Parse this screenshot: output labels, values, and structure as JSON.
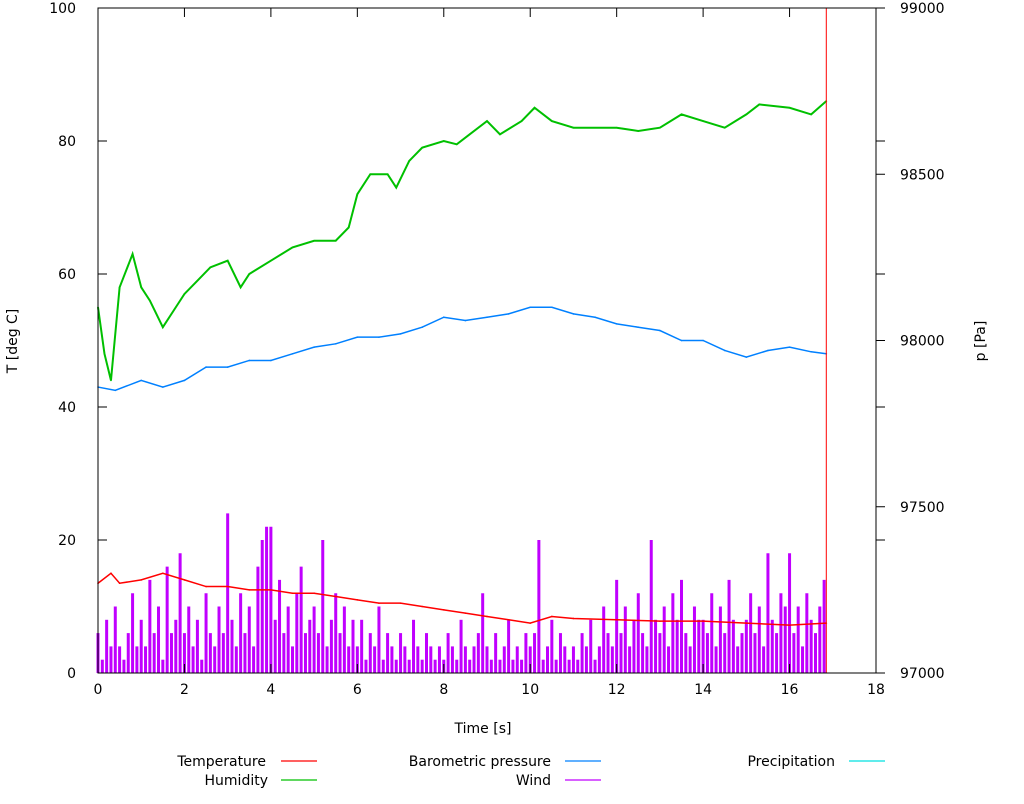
{
  "chart_data": {
    "type": "line",
    "xlabel": "Time [s]",
    "ylabel": "T [deg C]",
    "y2label": "p [Pa]",
    "xlim": [
      0,
      18
    ],
    "ylim": [
      0,
      100
    ],
    "y2lim": [
      97000,
      99000
    ],
    "xticks": [
      "0",
      "2",
      "4",
      "6",
      "8",
      "10",
      "12",
      "14",
      "16",
      "18"
    ],
    "yticks": [
      "0",
      "20",
      "40",
      "60",
      "80",
      "100"
    ],
    "y2ticks": [
      "97000",
      "97500",
      "98000",
      "98500",
      "99000"
    ],
    "grid": false,
    "legend_position": "bottom",
    "colors": {
      "Temperature": "#ff0000",
      "Humidity": "#00c000",
      "Barometric pressure": "#0080ff",
      "Wind": "#c000ff",
      "Precipitation": "#00e0e0"
    },
    "series": [
      {
        "name": "Temperature",
        "axis": "y",
        "style": "line",
        "points": [
          [
            0,
            13.5
          ],
          [
            0.3,
            15
          ],
          [
            0.5,
            13.5
          ],
          [
            1,
            14
          ],
          [
            1.5,
            15
          ],
          [
            2,
            14
          ],
          [
            2.5,
            13
          ],
          [
            3,
            13
          ],
          [
            3.5,
            12.5
          ],
          [
            4,
            12.5
          ],
          [
            4.5,
            12
          ],
          [
            5,
            12
          ],
          [
            5.5,
            11.5
          ],
          [
            6,
            11
          ],
          [
            6.5,
            10.5
          ],
          [
            7,
            10.5
          ],
          [
            7.5,
            10
          ],
          [
            8,
            9.5
          ],
          [
            8.5,
            9
          ],
          [
            9,
            8.5
          ],
          [
            9.5,
            8
          ],
          [
            10,
            7.5
          ],
          [
            10.5,
            8.5
          ],
          [
            11,
            8.2
          ],
          [
            12,
            8
          ],
          [
            13,
            7.8
          ],
          [
            14,
            7.8
          ],
          [
            15,
            7.5
          ],
          [
            16,
            7.2
          ],
          [
            16.85,
            7.5
          ]
        ]
      },
      {
        "name": "Humidity",
        "axis": "y",
        "style": "line",
        "points": [
          [
            0,
            55
          ],
          [
            0.15,
            48
          ],
          [
            0.3,
            44
          ],
          [
            0.5,
            58
          ],
          [
            0.8,
            63
          ],
          [
            1,
            58
          ],
          [
            1.2,
            56
          ],
          [
            1.5,
            52
          ],
          [
            1.8,
            55
          ],
          [
            2,
            57
          ],
          [
            2.3,
            59
          ],
          [
            2.6,
            61
          ],
          [
            3,
            62
          ],
          [
            3.3,
            58
          ],
          [
            3.5,
            60
          ],
          [
            4,
            62
          ],
          [
            4.5,
            64
          ],
          [
            5,
            65
          ],
          [
            5.5,
            65
          ],
          [
            5.8,
            67
          ],
          [
            6,
            72
          ],
          [
            6.3,
            75
          ],
          [
            6.7,
            75
          ],
          [
            6.9,
            73
          ],
          [
            7.2,
            77
          ],
          [
            7.5,
            79
          ],
          [
            8,
            80
          ],
          [
            8.3,
            79.5
          ],
          [
            8.6,
            81
          ],
          [
            9,
            83
          ],
          [
            9.3,
            81
          ],
          [
            9.8,
            83
          ],
          [
            10.1,
            85
          ],
          [
            10.5,
            83
          ],
          [
            11,
            82
          ],
          [
            12,
            82
          ],
          [
            12.5,
            81.5
          ],
          [
            13,
            82
          ],
          [
            13.5,
            84
          ],
          [
            14,
            83
          ],
          [
            14.5,
            82
          ],
          [
            15,
            84
          ],
          [
            15.3,
            85.5
          ],
          [
            16,
            85
          ],
          [
            16.5,
            84
          ],
          [
            16.85,
            86
          ]
        ]
      },
      {
        "name": "Barometric pressure",
        "axis": "y2",
        "style": "line",
        "points": [
          [
            0,
            97860
          ],
          [
            0.4,
            97850
          ],
          [
            1,
            97880
          ],
          [
            1.5,
            97860
          ],
          [
            2,
            97880
          ],
          [
            2.5,
            97920
          ],
          [
            3,
            97920
          ],
          [
            3.5,
            97940
          ],
          [
            4,
            97940
          ],
          [
            4.5,
            97960
          ],
          [
            5,
            97980
          ],
          [
            5.5,
            97990
          ],
          [
            6,
            98010
          ],
          [
            6.5,
            98010
          ],
          [
            7,
            98020
          ],
          [
            7.5,
            98040
          ],
          [
            8,
            98070
          ],
          [
            8.5,
            98060
          ],
          [
            9,
            98070
          ],
          [
            9.5,
            98080
          ],
          [
            10,
            98100
          ],
          [
            10.5,
            98100
          ],
          [
            11,
            98080
          ],
          [
            11.5,
            98070
          ],
          [
            12,
            98050
          ],
          [
            12.5,
            98040
          ],
          [
            13,
            98030
          ],
          [
            13.5,
            98000
          ],
          [
            14,
            98000
          ],
          [
            14.5,
            97970
          ],
          [
            15,
            97950
          ],
          [
            15.5,
            97970
          ],
          [
            16,
            97980
          ],
          [
            16.5,
            97966
          ],
          [
            16.85,
            97960
          ]
        ]
      },
      {
        "name": "Precipitation",
        "axis": "y",
        "style": "line",
        "points": []
      },
      {
        "name": "Wind",
        "axis": "y",
        "style": "impulses",
        "points": [
          [
            0,
            6
          ],
          [
            0.1,
            2
          ],
          [
            0.2,
            8
          ],
          [
            0.3,
            4
          ],
          [
            0.4,
            10
          ],
          [
            0.5,
            4
          ],
          [
            0.6,
            2
          ],
          [
            0.7,
            6
          ],
          [
            0.8,
            12
          ],
          [
            0.9,
            4
          ],
          [
            1,
            8
          ],
          [
            1.1,
            4
          ],
          [
            1.2,
            14
          ],
          [
            1.3,
            6
          ],
          [
            1.4,
            10
          ],
          [
            1.5,
            2
          ],
          [
            1.6,
            16
          ],
          [
            1.7,
            6
          ],
          [
            1.8,
            8
          ],
          [
            1.9,
            18
          ],
          [
            2,
            6
          ],
          [
            2.1,
            10
          ],
          [
            2.2,
            4
          ],
          [
            2.3,
            8
          ],
          [
            2.4,
            2
          ],
          [
            2.5,
            12
          ],
          [
            2.6,
            6
          ],
          [
            2.7,
            4
          ],
          [
            2.8,
            10
          ],
          [
            2.9,
            6
          ],
          [
            3,
            24
          ],
          [
            3.1,
            8
          ],
          [
            3.2,
            4
          ],
          [
            3.3,
            12
          ],
          [
            3.4,
            6
          ],
          [
            3.5,
            10
          ],
          [
            3.6,
            4
          ],
          [
            3.7,
            16
          ],
          [
            3.8,
            20
          ],
          [
            3.9,
            22
          ],
          [
            4,
            22
          ],
          [
            4.1,
            8
          ],
          [
            4.2,
            14
          ],
          [
            4.3,
            6
          ],
          [
            4.4,
            10
          ],
          [
            4.5,
            4
          ],
          [
            4.6,
            12
          ],
          [
            4.7,
            16
          ],
          [
            4.8,
            6
          ],
          [
            4.9,
            8
          ],
          [
            5,
            10
          ],
          [
            5.1,
            6
          ],
          [
            5.2,
            20
          ],
          [
            5.3,
            4
          ],
          [
            5.4,
            8
          ],
          [
            5.5,
            12
          ],
          [
            5.6,
            6
          ],
          [
            5.7,
            10
          ],
          [
            5.8,
            4
          ],
          [
            5.9,
            8
          ],
          [
            6,
            4
          ],
          [
            6.1,
            8
          ],
          [
            6.2,
            2
          ],
          [
            6.3,
            6
          ],
          [
            6.4,
            4
          ],
          [
            6.5,
            10
          ],
          [
            6.6,
            2
          ],
          [
            6.7,
            6
          ],
          [
            6.8,
            4
          ],
          [
            6.9,
            2
          ],
          [
            7,
            6
          ],
          [
            7.1,
            4
          ],
          [
            7.2,
            2
          ],
          [
            7.3,
            8
          ],
          [
            7.4,
            4
          ],
          [
            7.5,
            2
          ],
          [
            7.6,
            6
          ],
          [
            7.7,
            4
          ],
          [
            7.8,
            2
          ],
          [
            7.9,
            4
          ],
          [
            8,
            2
          ],
          [
            8.1,
            6
          ],
          [
            8.2,
            4
          ],
          [
            8.3,
            2
          ],
          [
            8.4,
            8
          ],
          [
            8.5,
            4
          ],
          [
            8.6,
            2
          ],
          [
            8.7,
            4
          ],
          [
            8.8,
            6
          ],
          [
            8.9,
            12
          ],
          [
            9,
            4
          ],
          [
            9.1,
            2
          ],
          [
            9.2,
            6
          ],
          [
            9.3,
            2
          ],
          [
            9.4,
            4
          ],
          [
            9.5,
            8
          ],
          [
            9.6,
            2
          ],
          [
            9.7,
            4
          ],
          [
            9.8,
            2
          ],
          [
            9.9,
            6
          ],
          [
            10,
            4
          ],
          [
            10.1,
            6
          ],
          [
            10.2,
            20
          ],
          [
            10.3,
            2
          ],
          [
            10.4,
            4
          ],
          [
            10.5,
            8
          ],
          [
            10.6,
            2
          ],
          [
            10.7,
            6
          ],
          [
            10.8,
            4
          ],
          [
            10.9,
            2
          ],
          [
            11,
            4
          ],
          [
            11.1,
            2
          ],
          [
            11.2,
            6
          ],
          [
            11.3,
            4
          ],
          [
            11.4,
            8
          ],
          [
            11.5,
            2
          ],
          [
            11.6,
            4
          ],
          [
            11.7,
            10
          ],
          [
            11.8,
            6
          ],
          [
            11.9,
            4
          ],
          [
            12,
            14
          ],
          [
            12.1,
            6
          ],
          [
            12.2,
            10
          ],
          [
            12.3,
            4
          ],
          [
            12.4,
            8
          ],
          [
            12.5,
            12
          ],
          [
            12.6,
            6
          ],
          [
            12.7,
            4
          ],
          [
            12.8,
            20
          ],
          [
            12.9,
            8
          ],
          [
            13,
            6
          ],
          [
            13.1,
            10
          ],
          [
            13.2,
            4
          ],
          [
            13.3,
            12
          ],
          [
            13.4,
            8
          ],
          [
            13.5,
            14
          ],
          [
            13.6,
            6
          ],
          [
            13.7,
            4
          ],
          [
            13.8,
            10
          ],
          [
            13.9,
            8
          ],
          [
            14,
            8
          ],
          [
            14.1,
            6
          ],
          [
            14.2,
            12
          ],
          [
            14.3,
            4
          ],
          [
            14.4,
            10
          ],
          [
            14.5,
            6
          ],
          [
            14.6,
            14
          ],
          [
            14.7,
            8
          ],
          [
            14.8,
            4
          ],
          [
            14.9,
            6
          ],
          [
            15,
            8
          ],
          [
            15.1,
            12
          ],
          [
            15.2,
            6
          ],
          [
            15.3,
            10
          ],
          [
            15.4,
            4
          ],
          [
            15.5,
            18
          ],
          [
            15.6,
            8
          ],
          [
            15.7,
            6
          ],
          [
            15.8,
            12
          ],
          [
            15.9,
            10
          ],
          [
            16,
            18
          ],
          [
            16.1,
            6
          ],
          [
            16.2,
            10
          ],
          [
            16.3,
            4
          ],
          [
            16.4,
            12
          ],
          [
            16.5,
            8
          ],
          [
            16.6,
            6
          ],
          [
            16.7,
            10
          ],
          [
            16.8,
            14
          ]
        ]
      }
    ]
  }
}
